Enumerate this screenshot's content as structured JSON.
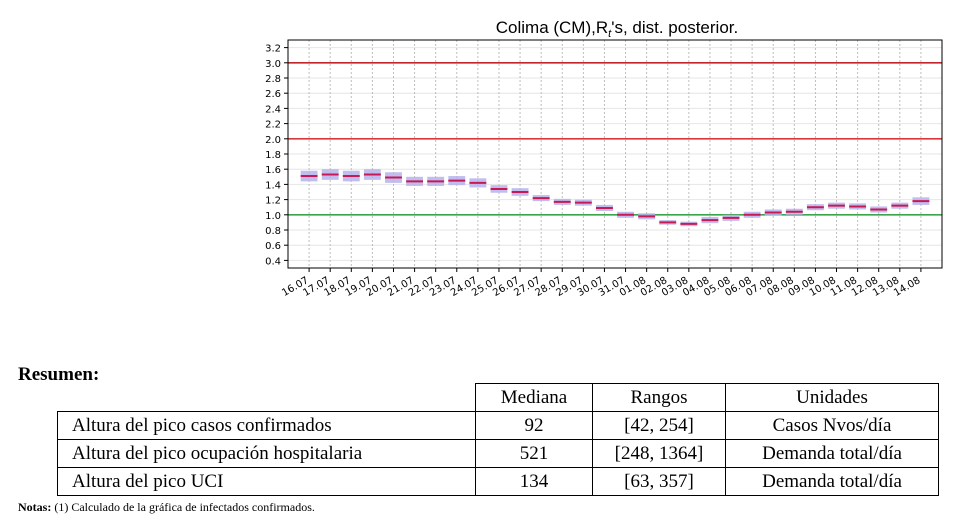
{
  "chart_data": {
    "type": "errorbar",
    "title": "Colima (CM),R",
    "title_subscript": "t",
    "title_suffix": "'s, dist. posterior.",
    "xlabel": "",
    "ylabel": "",
    "ylim": [
      0.3,
      3.3
    ],
    "yticks": [
      0.4,
      0.6,
      0.8,
      1.0,
      1.2,
      1.4,
      1.6,
      1.8,
      2.0,
      2.2,
      2.4,
      2.6,
      2.8,
      3.0,
      3.2
    ],
    "ytick_labels": [
      "0.4",
      "0.6",
      "0.8",
      "1.0",
      "1.2",
      "1.4",
      "1.6",
      "1.8",
      "2.0",
      "2.2",
      "2.4",
      "2.6",
      "2.8",
      "3.0",
      "3.2"
    ],
    "grid": true,
    "categories": [
      "16.07",
      "17.07",
      "18.07",
      "19.07",
      "20.07",
      "21.07",
      "22.07",
      "23.07",
      "24.07",
      "25.07",
      "26.07",
      "27.07",
      "28.07",
      "29.07",
      "30.07",
      "31.07",
      "01.08",
      "02.08",
      "03.08",
      "04.08",
      "05.08",
      "06.08",
      "07.08",
      "08.08",
      "09.08",
      "10.08",
      "11.08",
      "12.08",
      "13.08",
      "14.08"
    ],
    "median": [
      1.51,
      1.53,
      1.51,
      1.53,
      1.49,
      1.44,
      1.44,
      1.45,
      1.42,
      1.34,
      1.3,
      1.22,
      1.17,
      1.16,
      1.09,
      1.0,
      0.98,
      0.9,
      0.88,
      0.93,
      0.96,
      1.0,
      1.03,
      1.04,
      1.1,
      1.12,
      1.11,
      1.07,
      1.12,
      1.18
    ],
    "lower": [
      1.44,
      1.46,
      1.44,
      1.46,
      1.42,
      1.38,
      1.38,
      1.39,
      1.36,
      1.29,
      1.25,
      1.18,
      1.13,
      1.12,
      1.05,
      0.96,
      0.94,
      0.87,
      0.85,
      0.89,
      0.92,
      0.96,
      0.99,
      1.0,
      1.06,
      1.08,
      1.07,
      1.03,
      1.08,
      1.13
    ],
    "upper": [
      1.58,
      1.6,
      1.58,
      1.6,
      1.56,
      1.5,
      1.5,
      1.51,
      1.48,
      1.39,
      1.35,
      1.26,
      1.21,
      1.2,
      1.13,
      1.04,
      1.02,
      0.93,
      0.91,
      0.97,
      1.0,
      1.04,
      1.07,
      1.08,
      1.14,
      1.16,
      1.15,
      1.11,
      1.16,
      1.23
    ],
    "reference_lines": [
      {
        "value": 1.0,
        "color": "#3aa54a"
      },
      {
        "value": 2.0,
        "color": "#d9383a"
      },
      {
        "value": 3.0,
        "color": "#c0262a"
      }
    ],
    "colors": {
      "box": "#b6b2ec",
      "median": "#c61a55",
      "grid": "#bdbdbd"
    }
  },
  "summary": {
    "heading": "Resumen:",
    "columns": [
      "Mediana",
      "Rangos",
      "Unidades"
    ],
    "rows": [
      {
        "label": "Altura del pico casos confirmados",
        "mediana": "92",
        "rangos": "[42, 254]",
        "unidades": "Casos Nvos/día"
      },
      {
        "label": "Altura del pico ocupación hospitalaria",
        "mediana": "521",
        "rangos": "[248, 1364]",
        "unidades": "Demanda total/día"
      },
      {
        "label": "Altura del pico UCI",
        "mediana": "134",
        "rangos": "[63, 357]",
        "unidades": "Demanda total/día"
      }
    ]
  },
  "notes": {
    "label": "Notas:",
    "text": " (1) Calculado de la gráfica de infectados confirmados."
  }
}
